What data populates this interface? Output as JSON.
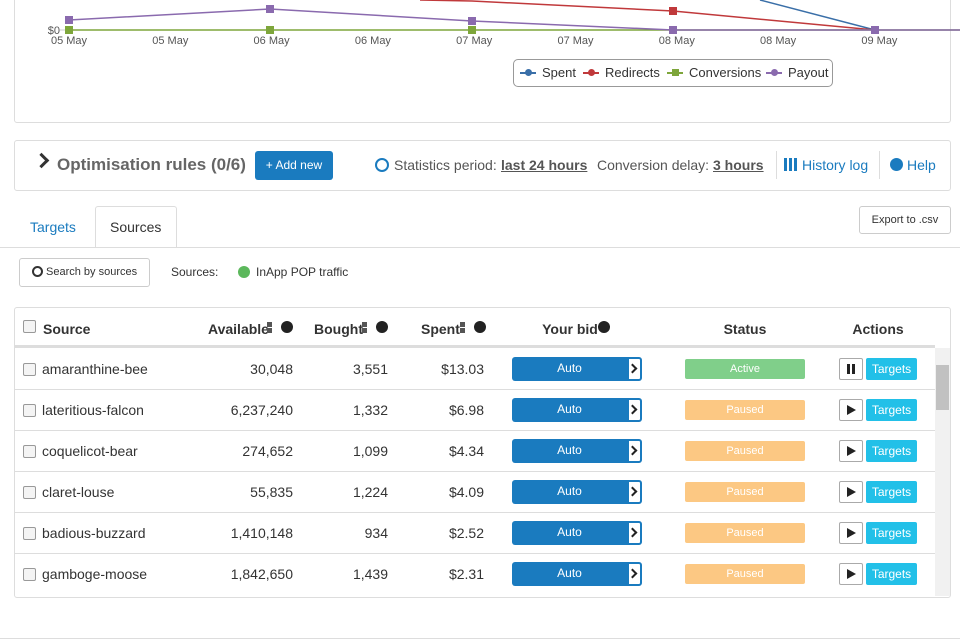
{
  "chart": {
    "y_label": "$0",
    "x_labels": [
      "05 May",
      "05 May",
      "06 May",
      "06 May",
      "07 May",
      "07 May",
      "08 May",
      "08 May",
      "09 May"
    ],
    "legend": [
      {
        "name": "Spent",
        "color": "#3a6fa8"
      },
      {
        "name": "Redirects",
        "color": "#c0393b"
      },
      {
        "name": "Conversions",
        "color": "#7ea63b"
      },
      {
        "name": "Payout",
        "color": "#8a6aae"
      }
    ]
  },
  "rules": {
    "title": "Optimisation rules (0/6)",
    "add_button": "+ Add new",
    "stats_label": "Statistics period:",
    "stats_value": "last 24 hours",
    "delay_label": "Conversion delay:",
    "delay_value": "3 hours",
    "history": "History log",
    "help": "Help"
  },
  "tabs": [
    "Targets",
    "Sources"
  ],
  "export": "Export to .csv",
  "search": "Search by sources",
  "filter_label": "Sources:",
  "filter_value": "InApp POP traffic",
  "table": {
    "columns": [
      "Source",
      "Available",
      "Bought",
      "Spent",
      "Your bid",
      "Status",
      "Actions"
    ],
    "rows": [
      [
        "amaranthine-bee",
        "30,048",
        "3,551",
        "$13.03",
        "Auto",
        "Active",
        "Targets"
      ],
      [
        "lateritious-falcon",
        "6,237,240",
        "1,332",
        "$6.98",
        "Auto",
        "Paused",
        "Targets"
      ],
      [
        "coquelicot-bear",
        "274,652",
        "1,099",
        "$4.34",
        "Auto",
        "Paused",
        "Targets"
      ],
      [
        "claret-louse",
        "55,835",
        "1,224",
        "$4.09",
        "Auto",
        "Paused",
        "Targets"
      ],
      [
        "badious-buzzard",
        "1,410,148",
        "934",
        "$2.52",
        "Auto",
        "Paused",
        "Targets"
      ],
      [
        "gamboge-moose",
        "1,842,650",
        "1,439",
        "$2.31",
        "Auto",
        "Paused",
        "Targets"
      ]
    ]
  }
}
